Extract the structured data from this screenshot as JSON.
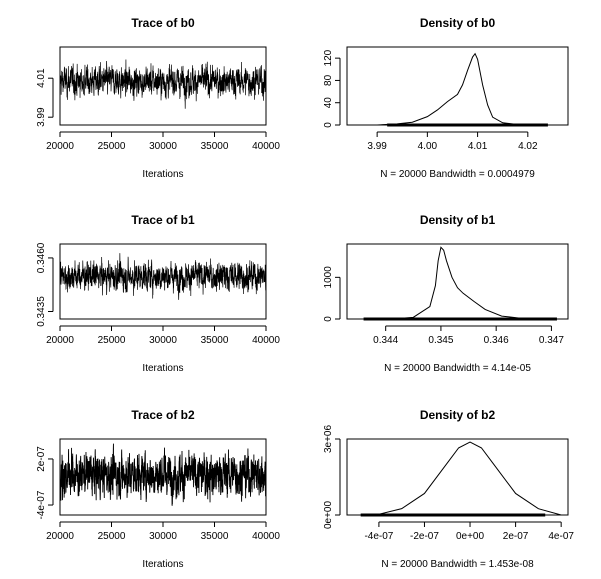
{
  "chart_data": [
    {
      "type": "line",
      "title": "Trace of b0",
      "xlabel": "Iterations",
      "xlim": [
        20000,
        40000
      ],
      "ylim": [
        3.986,
        4.026
      ],
      "xticks": [
        "20000",
        "25000",
        "30000",
        "35000",
        "40000"
      ],
      "yticks": [
        "3.99",
        "4.01"
      ],
      "ytick_values": [
        3.99,
        4.01
      ],
      "trace": {
        "n": 20000,
        "mean": 4.0085,
        "sd": 0.0037,
        "min": 3.988,
        "max": 4.024
      }
    },
    {
      "type": "area",
      "title": "Density of b0",
      "xlabel": "N = 20000   Bandwidth = 0.0004979",
      "xlim": [
        3.984,
        4.028
      ],
      "ylim": [
        0,
        140
      ],
      "xticks": [
        "3.99",
        "4.00",
        "4.01",
        "4.02"
      ],
      "yticks": [
        "0",
        "40",
        "80",
        "120"
      ],
      "x": [
        3.99,
        3.994,
        3.997,
        4.0,
        4.002,
        4.004,
        4.006,
        4.007,
        4.008,
        4.009,
        4.0095,
        4.01,
        4.011,
        4.012,
        4.013,
        4.015,
        4.018,
        4.021,
        4.025
      ],
      "y": [
        0,
        2,
        5,
        15,
        27,
        42,
        55,
        72,
        98,
        122,
        128,
        118,
        72,
        36,
        14,
        4,
        1,
        0,
        0
      ],
      "rug": [
        3.992,
        4.024
      ]
    },
    {
      "type": "line",
      "title": "Trace of b1",
      "xlabel": "Iterations",
      "xlim": [
        20000,
        40000
      ],
      "ylim": [
        0.34315,
        0.34665
      ],
      "xticks": [
        "20000",
        "25000",
        "30000",
        "35000",
        "40000"
      ],
      "yticks": [
        "0.3435",
        "0.3460"
      ],
      "ytick_values": [
        0.3435,
        0.346
      ],
      "trace": {
        "n": 20000,
        "mean": 0.34515,
        "sd": 0.00033,
        "min": 0.3436,
        "max": 0.3464
      }
    },
    {
      "type": "area",
      "title": "Density of b1",
      "xlabel": "N = 20000   Bandwidth = 4.14e-05",
      "xlim": [
        0.3433,
        0.3473
      ],
      "ylim": [
        0,
        1800
      ],
      "xticks": [
        "0.344",
        "0.345",
        "0.346",
        "0.347"
      ],
      "yticks": [
        "0",
        "1000"
      ],
      "x": [
        0.3441,
        0.3445,
        0.3448,
        0.3449,
        0.34495,
        0.345,
        0.34505,
        0.3451,
        0.3452,
        0.3453,
        0.3454,
        0.3456,
        0.3458,
        0.3461,
        0.3465,
        0.347
      ],
      "y": [
        0,
        40,
        300,
        800,
        1400,
        1720,
        1650,
        1400,
        1000,
        750,
        620,
        420,
        230,
        70,
        10,
        0
      ],
      "rug": [
        0.3436,
        0.3471
      ]
    },
    {
      "type": "line",
      "title": "Trace of b2",
      "xlabel": "Iterations",
      "xlim": [
        20000,
        40000
      ],
      "ylim": [
        -5.3e-07,
        4.6e-07
      ],
      "xticks": [
        "20000",
        "25000",
        "30000",
        "35000",
        "40000"
      ],
      "yticks": [
        "-4e-07",
        "2e-07"
      ],
      "ytick_values": [
        -4e-07,
        2e-07
      ],
      "trace": {
        "n": 20000,
        "mean": 0,
        "sd": 1.35e-07,
        "min": -4.8e-07,
        "max": 4e-07
      }
    },
    {
      "type": "area",
      "title": "Density of b2",
      "xlabel": "N = 20000   Bandwidth = 1.453e-08",
      "xlim": [
        -5.4e-07,
        4.3e-07
      ],
      "ylim": [
        0,
        3000000.0
      ],
      "xticks": [
        "-4e-07",
        "-2e-07",
        "0e+00",
        "2e-07",
        "4e-07"
      ],
      "yticks": [
        "0e+00",
        "3e+06"
      ],
      "x": [
        -4.8e-07,
        -4e-07,
        -3e-07,
        -2e-07,
        -1e-07,
        -5e-08,
        0,
        5e-08,
        1e-07,
        2e-07,
        3e-07,
        4e-07
      ],
      "y": [
        0,
        30000,
        250000,
        850000,
        2050000,
        2650000,
        2880000,
        2650000,
        2050000,
        850000,
        250000,
        0
      ],
      "rug": [
        -4.8e-07,
        3.3e-07
      ]
    }
  ]
}
